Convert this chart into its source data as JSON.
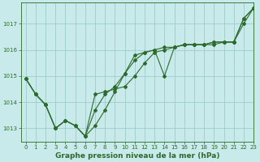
{
  "title": "Graphe pression niveau de la mer (hPa)",
  "background_color": "#c8eaea",
  "grid_color": "#a0cccc",
  "line_color": "#2d6a2d",
  "xlim": [
    -0.5,
    23
  ],
  "ylim": [
    1012.5,
    1017.8
  ],
  "yticks": [
    1013,
    1014,
    1015,
    1016,
    1017
  ],
  "xticks": [
    0,
    1,
    2,
    3,
    4,
    5,
    6,
    7,
    8,
    9,
    10,
    11,
    12,
    13,
    14,
    15,
    16,
    17,
    18,
    19,
    20,
    21,
    22,
    23
  ],
  "series1": [
    1014.9,
    1014.3,
    1013.9,
    1013.0,
    1013.3,
    1013.1,
    1012.7,
    1013.1,
    1013.7,
    1014.4,
    1015.1,
    1015.8,
    1015.9,
    1016.0,
    1015.0,
    1016.1,
    1016.2,
    1016.2,
    1016.2,
    1016.2,
    1016.3,
    1016.3,
    1017.2,
    1017.6
  ],
  "series2": [
    1014.9,
    1014.3,
    1013.9,
    1013.0,
    1013.3,
    1013.1,
    1012.7,
    1014.3,
    1014.4,
    1014.5,
    1014.6,
    1015.0,
    1015.5,
    1015.9,
    1016.0,
    1016.1,
    1016.2,
    1016.2,
    1016.2,
    1016.3,
    1016.3,
    1016.3,
    1017.2,
    1017.6
  ],
  "series3": [
    1014.9,
    1014.3,
    1013.9,
    1013.0,
    1013.3,
    1013.1,
    1012.7,
    1013.7,
    1014.3,
    1014.6,
    1015.1,
    1015.6,
    1015.9,
    1016.0,
    1016.1,
    1016.1,
    1016.2,
    1016.2,
    1016.2,
    1016.3,
    1016.3,
    1016.3,
    1017.0,
    1017.6
  ],
  "figwidth": 3.2,
  "figheight": 2.0,
  "dpi": 100,
  "linewidth": 0.8,
  "markersize": 2.0,
  "tick_fontsize": 5.0,
  "xlabel_fontsize": 6.5
}
